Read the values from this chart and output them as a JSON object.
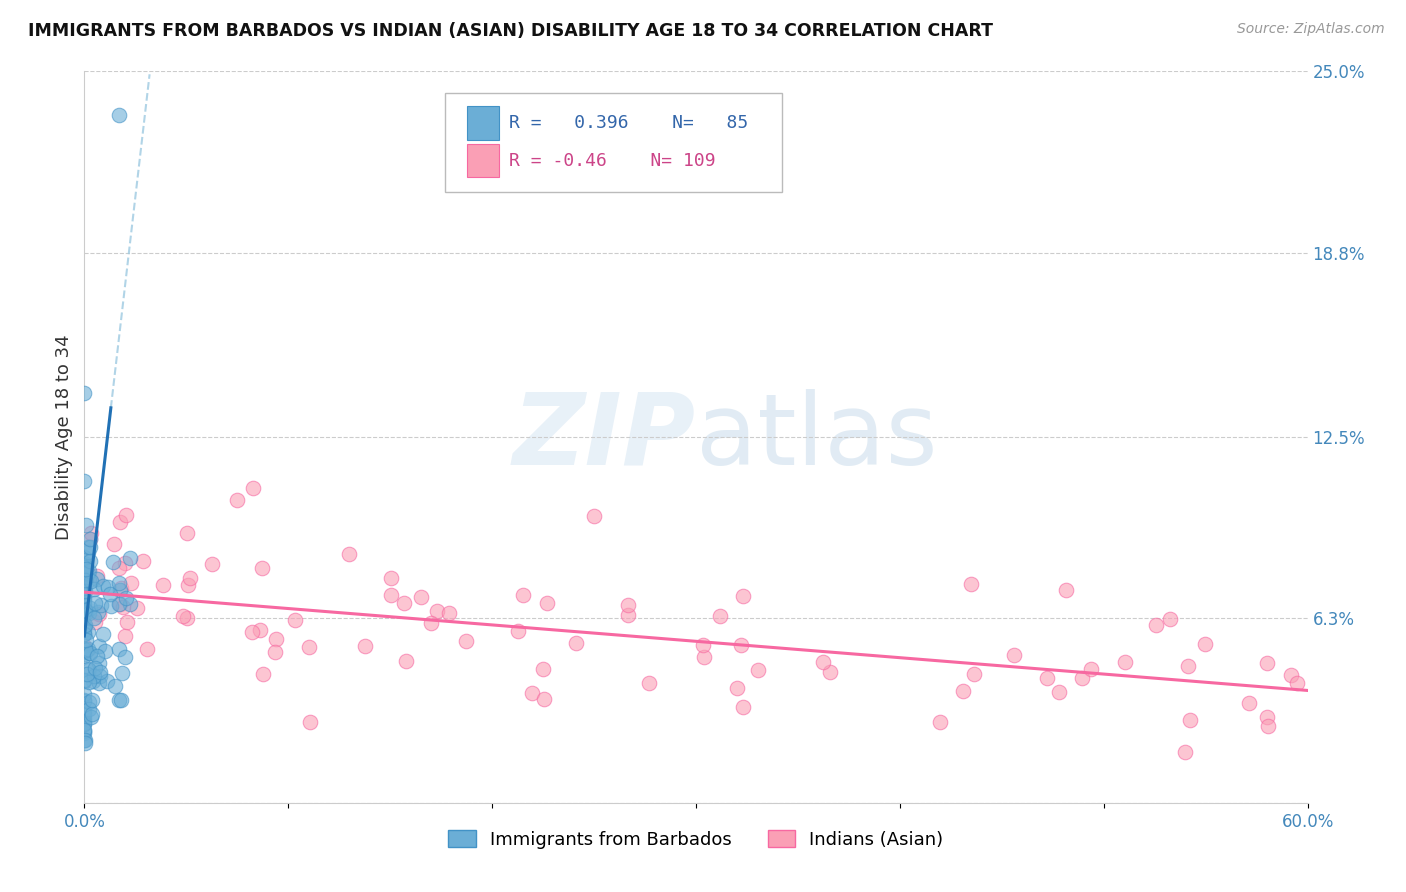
{
  "title": "IMMIGRANTS FROM BARBADOS VS INDIAN (ASIAN) DISABILITY AGE 18 TO 34 CORRELATION CHART",
  "source": "Source: ZipAtlas.com",
  "ylabel": "Disability Age 18 to 34",
  "xlim": [
    0.0,
    0.6
  ],
  "ylim": [
    0.0,
    0.25
  ],
  "xtick_values": [
    0.0,
    0.1,
    0.2,
    0.3,
    0.4,
    0.5,
    0.6
  ],
  "xticklabels": [
    "0.0%",
    "",
    "",
    "",
    "",
    "",
    "60.0%"
  ],
  "ytick_right_labels": [
    "25.0%",
    "18.8%",
    "12.5%",
    "6.3%",
    ""
  ],
  "ytick_right_values": [
    0.25,
    0.188,
    0.125,
    0.063,
    0.0
  ],
  "barbados_R": 0.396,
  "barbados_N": 85,
  "indian_R": -0.46,
  "indian_N": 109,
  "barbados_color": "#6baed6",
  "indian_color": "#fa9fb5",
  "barbados_line_color": "#2171b5",
  "indian_line_color": "#f768a1",
  "barbados_edge_color": "#4292c6",
  "indian_edge_color": "#f768a1",
  "legend_label_barbados": "Immigrants from Barbados",
  "legend_label_indian": "Indians (Asian)",
  "watermark_zip": "ZIP",
  "watermark_atlas": "atlas",
  "background_color": "#ffffff",
  "grid_color": "#cccccc",
  "title_color": "#111111",
  "source_color": "#999999",
  "axis_label_color": "#333333",
  "tick_label_color": "#4488bb"
}
